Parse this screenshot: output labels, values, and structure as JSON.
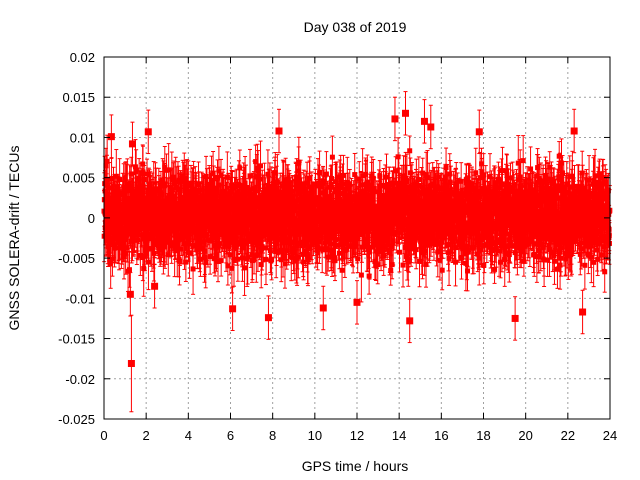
{
  "chart_data": {
    "type": "scatter",
    "title": "Day 038 of 2019",
    "xlabel": "GPS time / hours",
    "ylabel": "GNSS SOLERA-drift / TECUs",
    "xlim": [
      0,
      24
    ],
    "ylim": [
      -0.025,
      0.02
    ],
    "x_ticks": [
      0,
      2,
      4,
      6,
      8,
      10,
      12,
      14,
      16,
      18,
      20,
      22,
      24
    ],
    "x_tick_labels": [
      "0",
      "2",
      "4",
      "6",
      "8",
      "10",
      "12",
      "14",
      "16",
      "18",
      "20",
      "22",
      "24"
    ],
    "y_ticks": [
      -0.025,
      -0.02,
      -0.015,
      -0.01,
      -0.005,
      0,
      0.005,
      0.01,
      0.015,
      0.02
    ],
    "y_tick_labels": [
      "-0.025",
      "-0.02",
      "-0.015",
      "-0.01",
      "-0.005",
      "0",
      "0.005",
      "0.01",
      "0.015",
      "0.02"
    ],
    "grid": true,
    "series_color": "#ff0000",
    "marker": "square-with-errorbar",
    "n_points": 2880,
    "point_sampling_interval_hours": 0.008333,
    "typical_scatter_std": 0.003,
    "typical_errorbar_halfwidth": 0.003,
    "notable_points": [
      {
        "x": 0.35,
        "y": 0.0101
      },
      {
        "x": 1.25,
        "y": -0.0095
      },
      {
        "x": 1.3,
        "y": -0.0181,
        "err": 0.006
      },
      {
        "x": 1.35,
        "y": 0.0092
      },
      {
        "x": 2.1,
        "y": 0.0107
      },
      {
        "x": 2.4,
        "y": -0.0085
      },
      {
        "x": 6.1,
        "y": -0.0113
      },
      {
        "x": 7.8,
        "y": -0.0124
      },
      {
        "x": 8.3,
        "y": 0.0108
      },
      {
        "x": 10.4,
        "y": -0.0112
      },
      {
        "x": 12.0,
        "y": -0.0105
      },
      {
        "x": 13.8,
        "y": 0.0123
      },
      {
        "x": 14.3,
        "y": 0.013
      },
      {
        "x": 14.5,
        "y": -0.0128
      },
      {
        "x": 15.2,
        "y": 0.012
      },
      {
        "x": 15.5,
        "y": 0.0113
      },
      {
        "x": 17.8,
        "y": 0.0107
      },
      {
        "x": 19.5,
        "y": -0.0125
      },
      {
        "x": 22.3,
        "y": 0.0108
      },
      {
        "x": 22.7,
        "y": -0.0117
      }
    ]
  }
}
